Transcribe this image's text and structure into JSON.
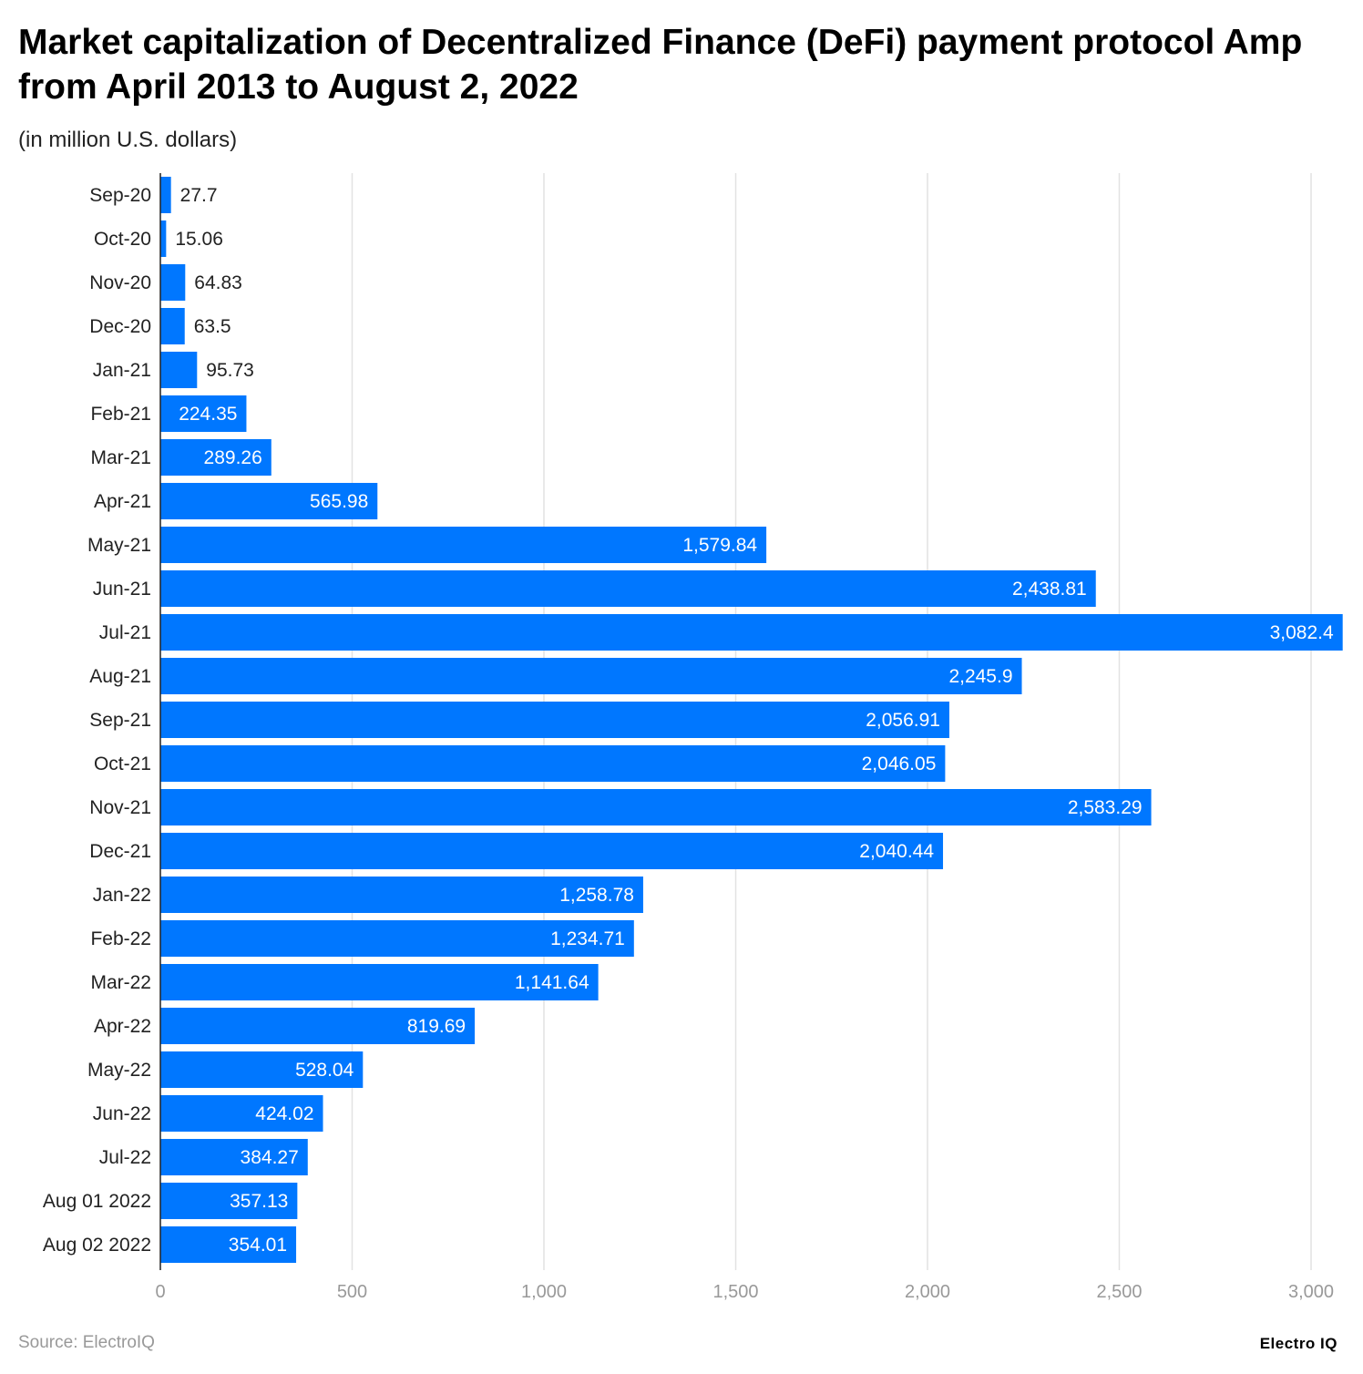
{
  "chart_data": {
    "type": "bar",
    "orientation": "horizontal",
    "title": "Market capitalization of Decentralized Finance (DeFi) payment protocol Amp from April 2013 to August 2, 2022",
    "subtitle": "(in million U.S. dollars)",
    "categories": [
      "Sep-20",
      "Oct-20",
      "Nov-20",
      "Dec-20",
      "Jan-21",
      "Feb-21",
      "Mar-21",
      "Apr-21",
      "May-21",
      "Jun-21",
      "Jul-21",
      "Aug-21",
      "Sep-21",
      "Oct-21",
      "Nov-21",
      "Dec-21",
      "Jan-22",
      "Feb-22",
      "Mar-22",
      "Apr-22",
      "May-22",
      "Jun-22",
      "Jul-22",
      "Aug 01 2022",
      "Aug 02 2022"
    ],
    "values": [
      27.7,
      15.06,
      64.83,
      63.5,
      95.73,
      224.35,
      289.26,
      565.98,
      1579.84,
      2438.81,
      3082.4,
      2245.9,
      2056.91,
      2046.05,
      2583.29,
      2040.44,
      1258.78,
      1234.71,
      1141.64,
      819.69,
      528.04,
      424.02,
      384.27,
      357.13,
      354.01
    ],
    "xlim": [
      0,
      3000
    ],
    "xticks": [
      0,
      500,
      1000,
      1500,
      2000,
      2500,
      3000
    ],
    "xtick_labels": [
      "0",
      "500",
      "1,000",
      "1,500",
      "2,000",
      "2,500",
      "3,000"
    ],
    "grid": true,
    "bar_color": "#0077ff"
  },
  "footer": {
    "source": "Source: ElectroIQ",
    "logo": "Electro IQ"
  }
}
